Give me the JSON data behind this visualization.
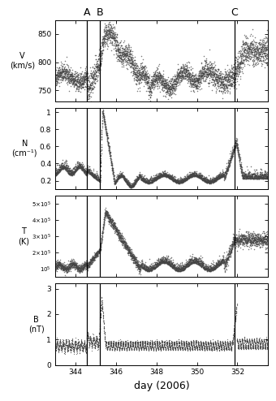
{
  "title": "",
  "xlabel": "day (2006)",
  "panels": [
    {
      "ylabel": "V\n(km/s)",
      "ylim": [
        730,
        875
      ],
      "yticks": [
        750,
        800,
        850
      ],
      "ytick_labels": [
        "750",
        "800",
        "850"
      ]
    },
    {
      "ylabel": "N\n(cm⁻¹)",
      "ylim": [
        0.1,
        1.05
      ],
      "yticks": [
        0.2,
        0.4,
        0.6,
        0.8,
        1.0
      ],
      "ytick_labels": [
        "0.2",
        "0.4",
        "0.6",
        "0.8",
        "1"
      ]
    },
    {
      "ylabel": "T\n(K)",
      "ylim": [
        50000.0,
        550000.0
      ],
      "yticks": [
        100000.0,
        200000.0,
        300000.0,
        400000.0,
        500000.0
      ],
      "ytick_labels": [
        "10⁵",
        "2*10⁵",
        "3*10⁵",
        "4*10⁵",
        "5*10⁵"
      ]
    },
    {
      "ylabel": "B\n(nT)",
      "ylim": [
        0,
        3.2
      ],
      "yticks": [
        0,
        1,
        2,
        3
      ],
      "ytick_labels": [
        "0",
        "1",
        "2",
        "3"
      ]
    }
  ],
  "xmin": 343.0,
  "xmax": 353.5,
  "xticks": [
    344,
    346,
    348,
    350,
    352
  ],
  "xtick_labels": [
    "344",
    "346",
    "348",
    "350",
    "352"
  ],
  "vlines": [
    {
      "x": 344.58,
      "label": "A"
    },
    {
      "x": 345.22,
      "label": "B"
    },
    {
      "x": 351.85,
      "label": "C"
    }
  ],
  "background_color": "#ffffff",
  "dot_color": "#444444",
  "line_color": "#111111"
}
